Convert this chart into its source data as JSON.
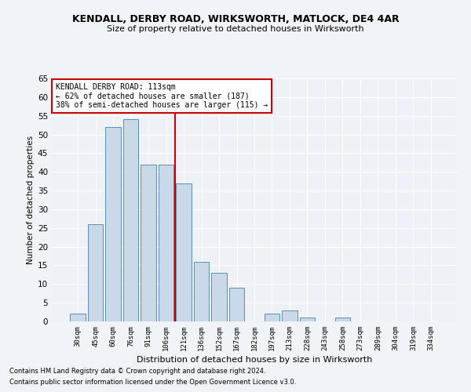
{
  "title1": "KENDALL, DERBY ROAD, WIRKSWORTH, MATLOCK, DE4 4AR",
  "title2": "Size of property relative to detached houses in Wirksworth",
  "xlabel": "Distribution of detached houses by size in Wirksworth",
  "ylabel": "Number of detached properties",
  "categories": [
    "30sqm",
    "45sqm",
    "60sqm",
    "76sqm",
    "91sqm",
    "106sqm",
    "121sqm",
    "136sqm",
    "152sqm",
    "167sqm",
    "182sqm",
    "197sqm",
    "213sqm",
    "228sqm",
    "243sqm",
    "258sqm",
    "273sqm",
    "289sqm",
    "304sqm",
    "319sqm",
    "334sqm"
  ],
  "values": [
    2,
    26,
    52,
    54,
    42,
    42,
    37,
    16,
    13,
    9,
    0,
    2,
    3,
    1,
    0,
    1,
    0,
    0,
    0,
    0,
    0
  ],
  "bar_color": "#c9d9e8",
  "bar_edge_color": "#5a8db5",
  "vline_color": "#cc0000",
  "annotation_text": "KENDALL DERBY ROAD: 113sqm\n← 62% of detached houses are smaller (187)\n38% of semi-detached houses are larger (115) →",
  "annotation_box_color": "#ffffff",
  "annotation_box_edge": "#cc0000",
  "ylim": [
    0,
    65
  ],
  "yticks": [
    0,
    5,
    10,
    15,
    20,
    25,
    30,
    35,
    40,
    45,
    50,
    55,
    60,
    65
  ],
  "bg_color": "#eef2f6",
  "grid_color": "#ffffff",
  "footnote1": "Contains HM Land Registry data © Crown copyright and database right 2024.",
  "footnote2": "Contains public sector information licensed under the Open Government Licence v3.0."
}
